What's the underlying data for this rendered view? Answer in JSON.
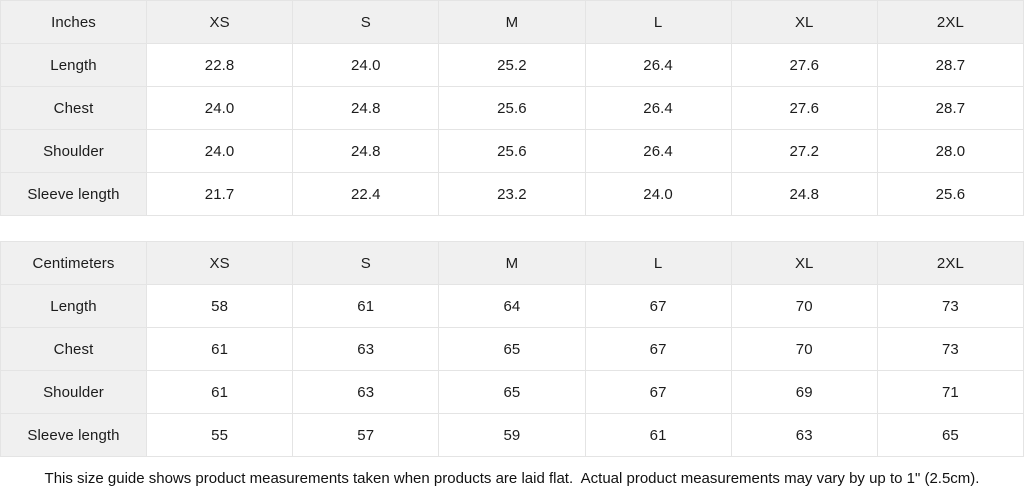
{
  "tables": [
    {
      "unit_label": "Inches",
      "columns": [
        "XS",
        "S",
        "M",
        "L",
        "XL",
        "2XL"
      ],
      "rows": [
        {
          "label": "Length",
          "values": [
            "22.8",
            "24.0",
            "25.2",
            "26.4",
            "27.6",
            "28.7"
          ]
        },
        {
          "label": "Chest",
          "values": [
            "24.0",
            "24.8",
            "25.6",
            "26.4",
            "27.6",
            "28.7"
          ]
        },
        {
          "label": "Shoulder",
          "values": [
            "24.0",
            "24.8",
            "25.6",
            "26.4",
            "27.2",
            "28.0"
          ]
        },
        {
          "label": "Sleeve length",
          "values": [
            "21.7",
            "22.4",
            "23.2",
            "24.0",
            "24.8",
            "25.6"
          ]
        }
      ]
    },
    {
      "unit_label": "Centimeters",
      "columns": [
        "XS",
        "S",
        "M",
        "L",
        "XL",
        "2XL"
      ],
      "rows": [
        {
          "label": "Length",
          "values": [
            "58",
            "61",
            "64",
            "67",
            "70",
            "73"
          ]
        },
        {
          "label": "Chest",
          "values": [
            "61",
            "63",
            "65",
            "67",
            "70",
            "73"
          ]
        },
        {
          "label": "Shoulder",
          "values": [
            "61",
            "63",
            "65",
            "67",
            "69",
            "71"
          ]
        },
        {
          "label": "Sleeve length",
          "values": [
            "55",
            "57",
            "59",
            "61",
            "63",
            "65"
          ]
        }
      ]
    }
  ],
  "footer": {
    "note": "This size guide shows product measurements taken when products are laid flat.  Actual product measurements may vary by up to 1\" (2.5cm)."
  },
  "colors": {
    "header_bg": "#f0f0f0",
    "border": "#e4e4e4",
    "text": "#1c1c1c",
    "background": "#ffffff"
  }
}
